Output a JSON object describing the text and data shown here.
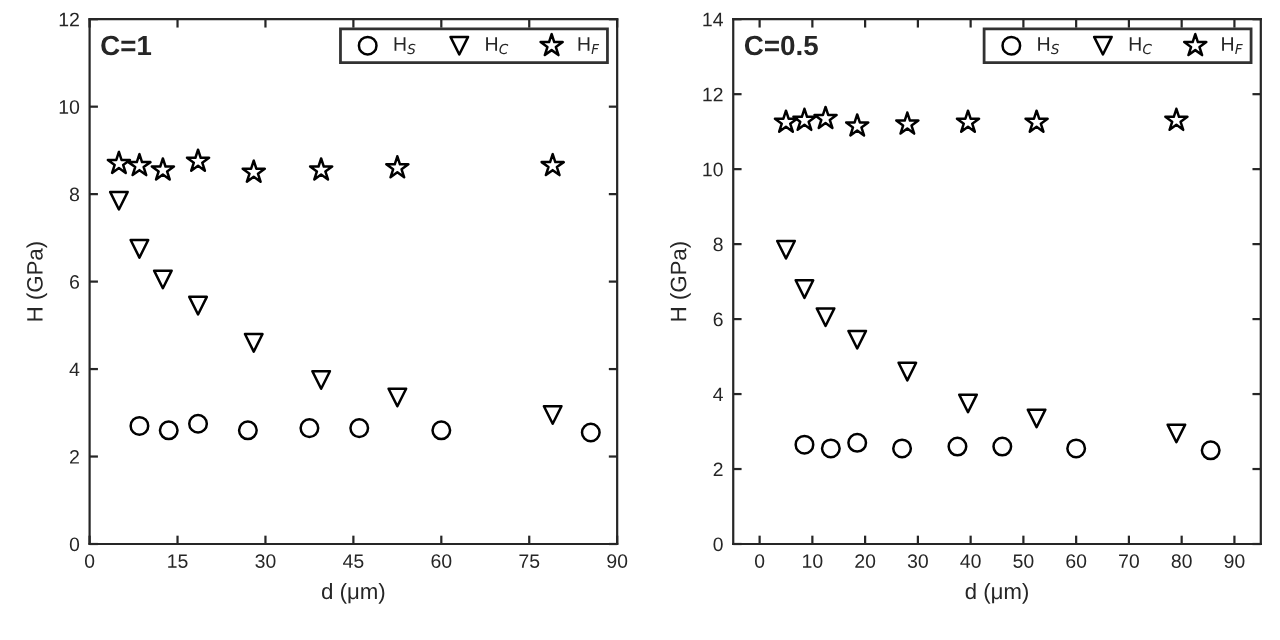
{
  "chart_data": [
    {
      "type": "scatter",
      "annotations": [
        "C=1"
      ],
      "xlabel": "d (μm)",
      "ylabel": "H (GPa)",
      "xlim": [
        0,
        90
      ],
      "xticks": [
        0,
        15,
        30,
        45,
        60,
        75,
        90
      ],
      "ylim": [
        0,
        12
      ],
      "yticks": [
        0,
        2,
        4,
        6,
        8,
        10,
        12
      ],
      "grid": false,
      "legend": "top right",
      "series": [
        {
          "name": "H$_{S}$",
          "color": "#000000",
          "marker": "circle",
          "x": [
            8.5,
            13.5,
            18.5,
            27,
            37.5,
            46,
            60,
            85.5
          ],
          "values": [
            2.7,
            2.6,
            2.75,
            2.6,
            2.65,
            2.65,
            2.6,
            2.55
          ]
        },
        {
          "name": "H$_{C}$",
          "color": "#000000",
          "marker": "triangle",
          "x": [
            5,
            8.5,
            12.5,
            18.5,
            28,
            39.5,
            52.5,
            79
          ],
          "values": [
            7.85,
            6.75,
            6.05,
            5.45,
            4.6,
            3.75,
            3.35,
            2.95
          ]
        },
        {
          "name": "H$_{F}$",
          "color": "#000000",
          "marker": "star",
          "x": [
            5,
            8.5,
            12.5,
            18.5,
            28,
            39.5,
            52.5,
            79
          ],
          "values": [
            8.7,
            8.65,
            8.55,
            8.75,
            8.5,
            8.55,
            8.6,
            8.65
          ]
        }
      ]
    },
    {
      "type": "scatter",
      "annotations": [
        "C=0.5"
      ],
      "xlabel": "d (μm)",
      "ylabel": "H (GPa)",
      "xlim": [
        -5,
        95
      ],
      "xticks": [
        0,
        10,
        20,
        30,
        40,
        50,
        60,
        70,
        80,
        90
      ],
      "ylim": [
        0,
        14
      ],
      "yticks": [
        0,
        2,
        4,
        6,
        8,
        10,
        12,
        14
      ],
      "grid": false,
      "legend": "top right",
      "series": [
        {
          "name": "H$_{S}$",
          "color": "#000000",
          "marker": "circle",
          "x": [
            8.5,
            13.5,
            18.5,
            27,
            37.5,
            46,
            60,
            85.5
          ],
          "values": [
            2.65,
            2.55,
            2.7,
            2.55,
            2.6,
            2.6,
            2.55,
            2.5
          ]
        },
        {
          "name": "H$_{C}$",
          "color": "#000000",
          "marker": "triangle",
          "x": [
            5,
            8.5,
            12.5,
            18.5,
            28,
            39.5,
            52.5,
            79
          ],
          "values": [
            7.85,
            6.8,
            6.05,
            5.45,
            4.6,
            3.75,
            3.35,
            2.95
          ]
        },
        {
          "name": "H$_{F}$",
          "color": "#000000",
          "marker": "star",
          "x": [
            5,
            8.5,
            12.5,
            18.5,
            28,
            39.5,
            52.5,
            79
          ],
          "values": [
            11.25,
            11.3,
            11.35,
            11.15,
            11.2,
            11.25,
            11.25,
            11.3
          ]
        }
      ]
    }
  ]
}
